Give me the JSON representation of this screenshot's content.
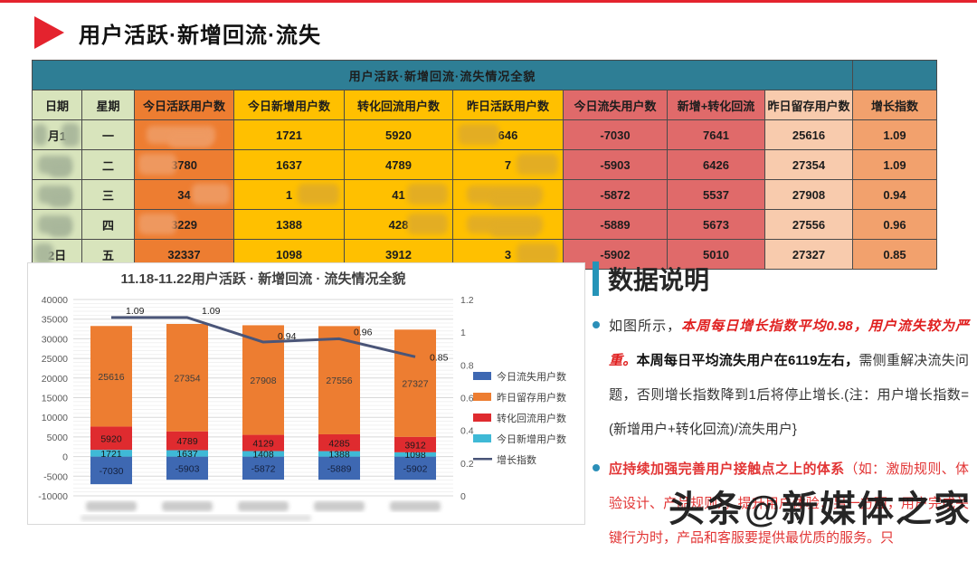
{
  "page": {
    "title": "用户活跃·新增回流·流失",
    "watermark": "头条@新媒体之家",
    "accent_red": "#E4232E",
    "accent_teal": "#2E7E95"
  },
  "table": {
    "caption": "用户活跃·新增回流·流失情况全貌",
    "columns": [
      {
        "label": "日期",
        "type": "green"
      },
      {
        "label": "星期",
        "type": "green"
      },
      {
        "label": "今日活跃用户数",
        "type": "orange"
      },
      {
        "label": "今日新增用户数",
        "type": "yellow"
      },
      {
        "label": "转化回流用户数",
        "type": "yellow"
      },
      {
        "label": "昨日活跃用户数",
        "type": "yellow"
      },
      {
        "label": "今日流失用户数",
        "type": "salmon"
      },
      {
        "label": "新增+转化回流",
        "type": "salmon"
      },
      {
        "label": "昨日留存用户数",
        "type": "peach"
      },
      {
        "label": "增长指数",
        "type": "growth"
      }
    ],
    "rows": [
      [
        {
          "t": "月1",
          "r": "edges"
        },
        {
          "t": "一"
        },
        {
          "t": "",
          "r": "full"
        },
        {
          "t": "1721"
        },
        {
          "t": "5920"
        },
        {
          "t": "646",
          "r": "partL"
        },
        {
          "t": "-7030"
        },
        {
          "t": "7641"
        },
        {
          "t": "25616"
        },
        {
          "t": "1.09"
        }
      ],
      [
        {
          "t": "",
          "r": "full"
        },
        {
          "t": "二"
        },
        {
          "t": "3780",
          "r": "partL"
        },
        {
          "t": "1637"
        },
        {
          "t": "4789"
        },
        {
          "t": "7",
          "r": "partR"
        },
        {
          "t": "-5903"
        },
        {
          "t": "6426"
        },
        {
          "t": "27354"
        },
        {
          "t": "1.09"
        }
      ],
      [
        {
          "t": "",
          "r": "full"
        },
        {
          "t": "三"
        },
        {
          "t": "34",
          "r": "partR"
        },
        {
          "t": "1",
          "r": "partR"
        },
        {
          "t": "41",
          "r": "partR"
        },
        {
          "t": "",
          "r": "full"
        },
        {
          "t": "-5872"
        },
        {
          "t": "5537"
        },
        {
          "t": "27908"
        },
        {
          "t": "0.94"
        }
      ],
      [
        {
          "t": "",
          "r": "full"
        },
        {
          "t": "四"
        },
        {
          "t": "3229",
          "r": "partL"
        },
        {
          "t": "1388"
        },
        {
          "t": "428",
          "r": "partR"
        },
        {
          "t": "",
          "r": "full"
        },
        {
          "t": "-5889"
        },
        {
          "t": "5673"
        },
        {
          "t": "27556"
        },
        {
          "t": "0.96"
        }
      ],
      [
        {
          "t": "2日",
          "r": "partL"
        },
        {
          "t": "五"
        },
        {
          "t": "32337"
        },
        {
          "t": "1098"
        },
        {
          "t": "3912"
        },
        {
          "t": "3",
          "r": "partR"
        },
        {
          "t": "-5902"
        },
        {
          "t": "5010"
        },
        {
          "t": "27327"
        },
        {
          "t": "0.85"
        }
      ]
    ]
  },
  "chart_data": {
    "type": "combo-stacked-bar-line",
    "title": "11.18-11.22用户活跃 · 新增回流 · 流失情况全貌",
    "categories_redacted": true,
    "n_categories": 5,
    "series": [
      {
        "name": "今日流失用户数",
        "type": "bar",
        "color": "#3E68B2",
        "values": [
          -7030,
          -5903,
          -5872,
          -5889,
          -5902
        ]
      },
      {
        "name": "昨日留存用户数",
        "type": "bar",
        "color": "#ED7D31",
        "values": [
          25616,
          27354,
          27908,
          27556,
          27327
        ]
      },
      {
        "name": "转化回流用户数",
        "type": "bar",
        "color": "#DF2B2F",
        "values": [
          5920,
          4789,
          4129,
          4285,
          3912
        ]
      },
      {
        "name": "今日新增用户数",
        "type": "bar",
        "color": "#3FB9D6",
        "values": [
          1721,
          1637,
          1408,
          1388,
          1098
        ]
      },
      {
        "name": "增长指数",
        "type": "line",
        "axis": "right",
        "color": "#4A5578",
        "values": [
          1.09,
          1.09,
          0.94,
          0.96,
          0.85
        ]
      }
    ],
    "stack_order_positive": [
      "今日新增用户数",
      "转化回流用户数",
      "昨日留存用户数"
    ],
    "left_axis": {
      "min": -10000,
      "max": 40000,
      "step": 5000,
      "minor_step": 1000
    },
    "right_axis": {
      "min": 0,
      "max": 1.2,
      "step": 0.2
    },
    "legend_position": "right",
    "legend_order": [
      "今日流失用户数",
      "昨日留存用户数",
      "转化回流用户数",
      "今日新增用户数",
      "增长指数"
    ],
    "line_label_dy": [
      -4,
      -4,
      -3,
      -4,
      4
    ]
  },
  "notes": {
    "heading": "数据说明",
    "bullets": [
      {
        "segments": [
          {
            "text": "如图所示，",
            "style": "normal"
          },
          {
            "text": "本周每日增长指数平均0.98，用户流失较为严重。",
            "style": "red-bold-italic"
          },
          {
            "text": "本周每日平均流失用户在6119左右，",
            "style": "bold"
          },
          {
            "text": "需侧重解决流失问题，否则增长指数降到1后将停止增长.(注：用户增长指数= (新增用户+转化回流)/流失用户}",
            "style": "normal"
          }
        ]
      },
      {
        "segments": [
          {
            "text": "应持续加强完善用户接触点之上的体系",
            "style": "red-bold"
          },
          {
            "text": "（如：激励规则、体验设计、产品规则），提升用户体验；另一方面，用户完成关键行为时，产品和客服要提供最优质的服务。只",
            "style": "red"
          }
        ]
      }
    ]
  }
}
